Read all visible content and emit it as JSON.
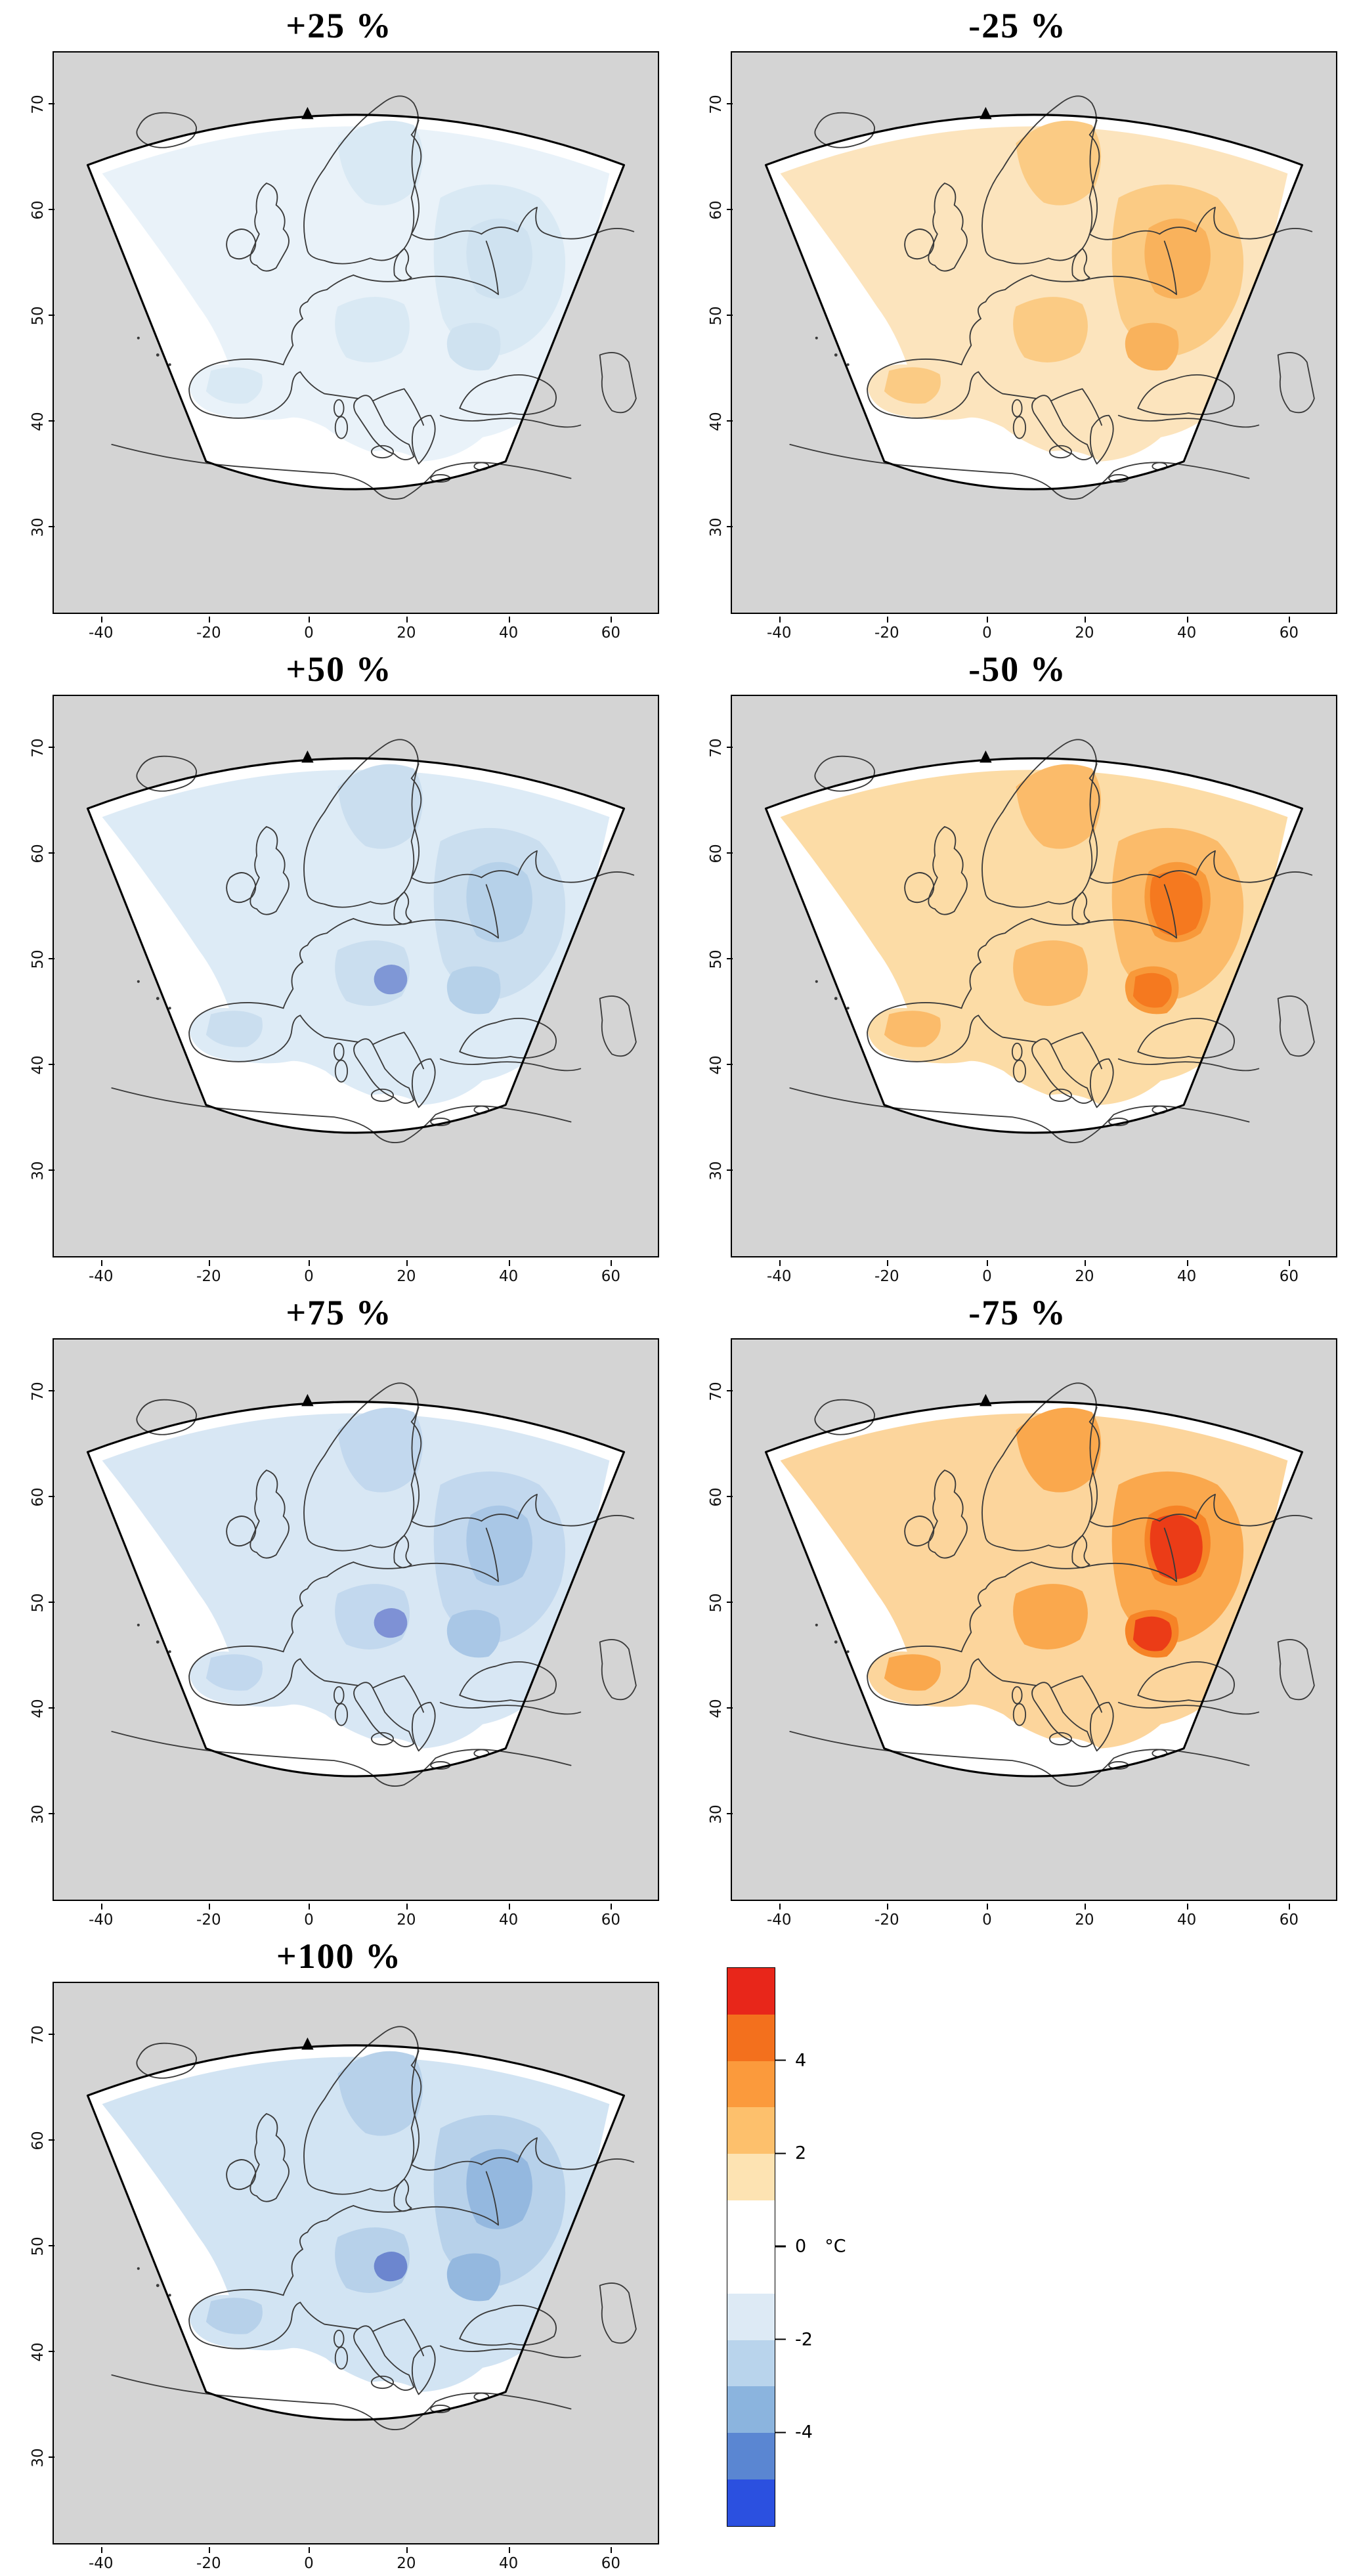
{
  "figure": {
    "type": "map-grid",
    "panels": [
      {
        "id": "plus25",
        "title": "+25 %",
        "field": {
          "base": "#e9f2f9",
          "mid": "#d9e9f4",
          "core": "#cfe2f0"
        }
      },
      {
        "id": "minus25",
        "title": "-25 %",
        "field": {
          "base": "#fce4bd",
          "mid": "#fbcb84",
          "core": "#f9b25c"
        }
      },
      {
        "id": "plus50",
        "title": "+50 %",
        "field": {
          "base": "#ddebf6",
          "mid": "#cadeef",
          "core": "#b6d1e9",
          "spot": "#7f97d6"
        }
      },
      {
        "id": "minus50",
        "title": "-50 %",
        "field": {
          "base": "#fcdca6",
          "mid": "#fbbb6a",
          "core": "#f8993a",
          "hot": "#f5791f"
        }
      },
      {
        "id": "plus75",
        "title": "+75 %",
        "field": {
          "base": "#d8e7f4",
          "mid": "#c2d8ee",
          "core": "#a9c7e6",
          "spot": "#7e91d5"
        }
      },
      {
        "id": "minus75",
        "title": "-75 %",
        "field": {
          "base": "#fcd59c",
          "mid": "#faa84d",
          "core": "#f68326",
          "hot": "#eb3c17"
        }
      },
      {
        "id": "plus100",
        "title": "+100 %",
        "field": {
          "base": "#d2e4f3",
          "mid": "#b7d1ea",
          "core": "#94b8df",
          "spot": "#6c86cf"
        }
      }
    ],
    "axes": {
      "x_ticks": [
        "-40",
        "-20",
        "0",
        "20",
        "40",
        "60"
      ],
      "y_ticks": [
        "30",
        "40",
        "50",
        "60",
        "70"
      ]
    },
    "legend": {
      "unit": "°C",
      "tick_labels": [
        "4",
        "2",
        "0",
        "-2",
        "-4"
      ],
      "segments": [
        {
          "color": "#e8261a",
          "span": 1
        },
        {
          "color": "#f3701d",
          "span": 1
        },
        {
          "color": "#fb9a3c",
          "span": 1
        },
        {
          "color": "#fdc06c",
          "span": 1
        },
        {
          "color": "#fde3b2",
          "span": 1
        },
        {
          "color": "#ffffff",
          "span": 2
        },
        {
          "color": "#ddeaf5",
          "span": 1
        },
        {
          "color": "#b9d4ec",
          "span": 1
        },
        {
          "color": "#8bb4de",
          "span": 1
        },
        {
          "color": "#5a86d2",
          "span": 1
        },
        {
          "color": "#2b50e0",
          "span": 1
        }
      ]
    },
    "map_colors": {
      "background": "#d4d4d4",
      "domain_fill": "#ffffff",
      "coastline": "#3a3a3a",
      "domain_outline": "#000000"
    }
  }
}
